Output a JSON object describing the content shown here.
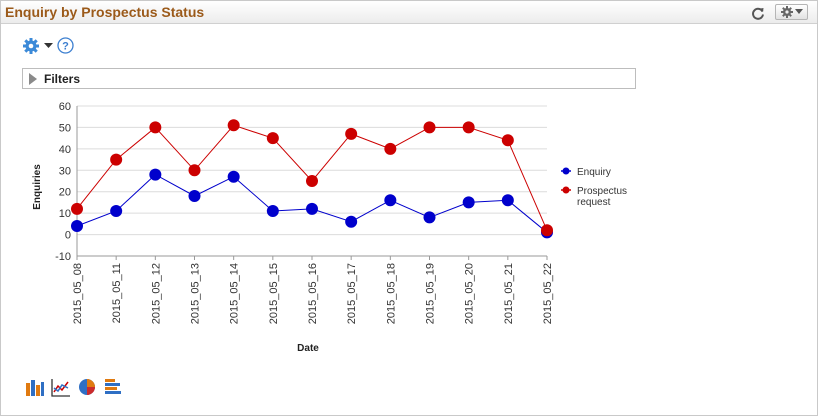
{
  "pagelet": {
    "title": "Enquiry by Prospectus Status",
    "refresh_icon": "refresh-icon",
    "actions_icon": "gear-dropdown-icon"
  },
  "toolbar": {
    "settings_icon": "gear-icon",
    "help_icon": "help-icon"
  },
  "filters": {
    "label": "Filters",
    "expanded": false
  },
  "chart_types": [
    "bar-chart-icon",
    "line-chart-icon",
    "pie-chart-icon",
    "horizontal-bar-chart-icon"
  ],
  "colors": {
    "title": "#9b5a1a",
    "series_enquiry": "#0000cc",
    "series_prospectus": "#cc0000",
    "grid": "#dcdcdc"
  },
  "chart_data": {
    "type": "line",
    "title": "",
    "xlabel": "Date",
    "ylabel": "Enquiries",
    "ylim": [
      -10,
      60
    ],
    "yticks": [
      -10,
      0,
      10,
      20,
      30,
      40,
      50,
      60
    ],
    "grid": true,
    "legend": "right",
    "categories": [
      "2015_05_08",
      "2015_05_11",
      "2015_05_12",
      "2015_05_13",
      "2015_05_14",
      "2015_05_15",
      "2015_05_16",
      "2015_05_17",
      "2015_05_18",
      "2015_05_19",
      "2015_05_20",
      "2015_05_21",
      "2015_05_22"
    ],
    "series": [
      {
        "name": "Enquiry",
        "color": "#0000cc",
        "values": [
          4,
          11,
          28,
          18,
          27,
          11,
          12,
          6,
          16,
          8,
          15,
          16,
          1
        ]
      },
      {
        "name": "Prospectus request",
        "color": "#cc0000",
        "values": [
          12,
          35,
          50,
          30,
          51,
          45,
          25,
          47,
          40,
          50,
          50,
          44,
          2
        ]
      }
    ]
  }
}
